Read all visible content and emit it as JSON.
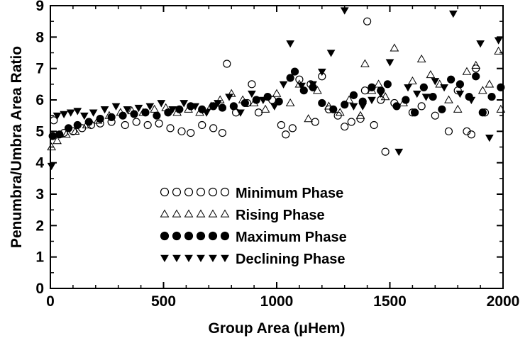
{
  "chart_data": {
    "type": "scatter",
    "xlabel": "Group Area (μHem)",
    "ylabel": "Penumbra/Umbra Area Ratio",
    "xlim": [
      0,
      2000
    ],
    "ylim": [
      0,
      9
    ],
    "x_ticks": [
      "0",
      "500",
      "1000",
      "1500",
      "2000"
    ],
    "y_ticks": [
      "0",
      "1",
      "2",
      "3",
      "4",
      "5",
      "6",
      "7",
      "8",
      "9"
    ],
    "legend_position": "lower-center",
    "series": [
      {
        "name": "Minimum Phase",
        "marker": "circle-open",
        "points": [
          [
            15,
            5.35
          ],
          [
            60,
            4.95
          ],
          [
            100,
            5.0
          ],
          [
            140,
            5.1
          ],
          [
            180,
            5.2
          ],
          [
            220,
            5.25
          ],
          [
            270,
            5.3
          ],
          [
            330,
            5.2
          ],
          [
            380,
            5.3
          ],
          [
            430,
            5.2
          ],
          [
            480,
            5.25
          ],
          [
            530,
            5.1
          ],
          [
            580,
            5.0
          ],
          [
            620,
            4.95
          ],
          [
            670,
            5.2
          ],
          [
            720,
            5.1
          ],
          [
            760,
            4.95
          ],
          [
            780,
            7.15
          ],
          [
            820,
            5.6
          ],
          [
            870,
            5.9
          ],
          [
            890,
            6.5
          ],
          [
            920,
            5.6
          ],
          [
            980,
            6.0
          ],
          [
            1020,
            5.2
          ],
          [
            1040,
            4.9
          ],
          [
            1070,
            5.1
          ],
          [
            1100,
            6.65
          ],
          [
            1150,
            6.5
          ],
          [
            1170,
            5.3
          ],
          [
            1200,
            6.75
          ],
          [
            1230,
            5.7
          ],
          [
            1270,
            5.5
          ],
          [
            1300,
            5.15
          ],
          [
            1330,
            5.3
          ],
          [
            1370,
            5.4
          ],
          [
            1390,
            6.3
          ],
          [
            1400,
            8.5
          ],
          [
            1430,
            5.2
          ],
          [
            1460,
            6.0
          ],
          [
            1480,
            4.35
          ],
          [
            1520,
            5.9
          ],
          [
            1600,
            5.6
          ],
          [
            1640,
            5.8
          ],
          [
            1700,
            5.5
          ],
          [
            1760,
            5.0
          ],
          [
            1800,
            6.3
          ],
          [
            1840,
            5.0
          ],
          [
            1860,
            4.9
          ],
          [
            1880,
            7.0
          ],
          [
            1920,
            5.6
          ]
        ]
      },
      {
        "name": "Rising Phase",
        "marker": "triangle-open",
        "points": [
          [
            5,
            4.5
          ],
          [
            30,
            4.7
          ],
          [
            70,
            4.9
          ],
          [
            110,
            5.0
          ],
          [
            160,
            5.2
          ],
          [
            210,
            5.35
          ],
          [
            260,
            5.5
          ],
          [
            310,
            5.6
          ],
          [
            360,
            5.65
          ],
          [
            410,
            5.6
          ],
          [
            460,
            5.7
          ],
          [
            510,
            5.75
          ],
          [
            560,
            5.6
          ],
          [
            610,
            5.7
          ],
          [
            660,
            5.6
          ],
          [
            710,
            5.8
          ],
          [
            750,
            6.0
          ],
          [
            800,
            6.2
          ],
          [
            850,
            6.0
          ],
          [
            900,
            5.9
          ],
          [
            950,
            5.7
          ],
          [
            1000,
            6.2
          ],
          [
            1060,
            5.9
          ],
          [
            1100,
            6.5
          ],
          [
            1140,
            5.4
          ],
          [
            1180,
            6.3
          ],
          [
            1230,
            5.8
          ],
          [
            1280,
            5.6
          ],
          [
            1320,
            6.0
          ],
          [
            1370,
            5.5
          ],
          [
            1390,
            7.15
          ],
          [
            1420,
            6.3
          ],
          [
            1450,
            6.5
          ],
          [
            1480,
            6.1
          ],
          [
            1520,
            7.65
          ],
          [
            1560,
            5.9
          ],
          [
            1600,
            6.6
          ],
          [
            1640,
            7.3
          ],
          [
            1680,
            6.8
          ],
          [
            1720,
            6.5
          ],
          [
            1760,
            6.0
          ],
          [
            1800,
            5.7
          ],
          [
            1840,
            6.9
          ],
          [
            1880,
            7.1
          ],
          [
            1910,
            6.3
          ],
          [
            1940,
            6.5
          ],
          [
            1980,
            7.55
          ],
          [
            1990,
            5.7
          ]
        ]
      },
      {
        "name": "Maximum Phase",
        "marker": "circle-filled",
        "points": [
          [
            10,
            4.85
          ],
          [
            40,
            4.9
          ],
          [
            80,
            5.1
          ],
          [
            120,
            5.2
          ],
          [
            170,
            5.3
          ],
          [
            220,
            5.4
          ],
          [
            270,
            5.45
          ],
          [
            320,
            5.5
          ],
          [
            370,
            5.55
          ],
          [
            420,
            5.6
          ],
          [
            470,
            5.5
          ],
          [
            520,
            5.6
          ],
          [
            570,
            5.7
          ],
          [
            620,
            5.8
          ],
          [
            670,
            5.7
          ],
          [
            720,
            5.8
          ],
          [
            760,
            5.75
          ],
          [
            810,
            5.8
          ],
          [
            860,
            5.9
          ],
          [
            910,
            6.0
          ],
          [
            960,
            6.1
          ],
          [
            1010,
            5.95
          ],
          [
            1060,
            6.7
          ],
          [
            1080,
            6.9
          ],
          [
            1120,
            6.3
          ],
          [
            1160,
            6.4
          ],
          [
            1200,
            5.9
          ],
          [
            1250,
            5.7
          ],
          [
            1300,
            5.85
          ],
          [
            1340,
            6.15
          ],
          [
            1380,
            5.95
          ],
          [
            1420,
            6.4
          ],
          [
            1460,
            6.3
          ],
          [
            1490,
            6.5
          ],
          [
            1530,
            5.8
          ],
          [
            1570,
            6.0
          ],
          [
            1610,
            5.6
          ],
          [
            1650,
            6.4
          ],
          [
            1690,
            6.1
          ],
          [
            1730,
            5.7
          ],
          [
            1770,
            6.65
          ],
          [
            1810,
            6.5
          ],
          [
            1850,
            6.1
          ],
          [
            1880,
            6.75
          ],
          [
            1910,
            5.6
          ],
          [
            1950,
            6.1
          ],
          [
            1990,
            6.4
          ]
        ]
      },
      {
        "name": "Declining Phase",
        "marker": "triangle-filled",
        "points": [
          [
            5,
            3.9
          ],
          [
            30,
            5.5
          ],
          [
            60,
            5.55
          ],
          [
            90,
            5.6
          ],
          [
            120,
            5.65
          ],
          [
            150,
            5.5
          ],
          [
            190,
            5.6
          ],
          [
            240,
            5.7
          ],
          [
            290,
            5.8
          ],
          [
            340,
            5.7
          ],
          [
            390,
            5.75
          ],
          [
            440,
            5.8
          ],
          [
            490,
            5.9
          ],
          [
            540,
            5.7
          ],
          [
            590,
            5.9
          ],
          [
            640,
            5.8
          ],
          [
            690,
            5.6
          ],
          [
            740,
            5.9
          ],
          [
            790,
            6.1
          ],
          [
            840,
            5.6
          ],
          [
            890,
            6.2
          ],
          [
            940,
            6.0
          ],
          [
            990,
            5.8
          ],
          [
            1030,
            6.5
          ],
          [
            1060,
            7.8
          ],
          [
            1110,
            6.45
          ],
          [
            1160,
            6.5
          ],
          [
            1200,
            6.9
          ],
          [
            1240,
            7.5
          ],
          [
            1300,
            8.85
          ],
          [
            1340,
            5.8
          ],
          [
            1380,
            5.8
          ],
          [
            1420,
            6.0
          ],
          [
            1460,
            6.2
          ],
          [
            1500,
            7.2
          ],
          [
            1540,
            4.35
          ],
          [
            1580,
            6.4
          ],
          [
            1620,
            6.2
          ],
          [
            1660,
            6.1
          ],
          [
            1700,
            6.6
          ],
          [
            1740,
            6.4
          ],
          [
            1780,
            8.75
          ],
          [
            1810,
            6.2
          ],
          [
            1860,
            6.0
          ],
          [
            1900,
            7.8
          ],
          [
            1940,
            4.8
          ],
          [
            1980,
            7.9
          ]
        ]
      }
    ]
  }
}
